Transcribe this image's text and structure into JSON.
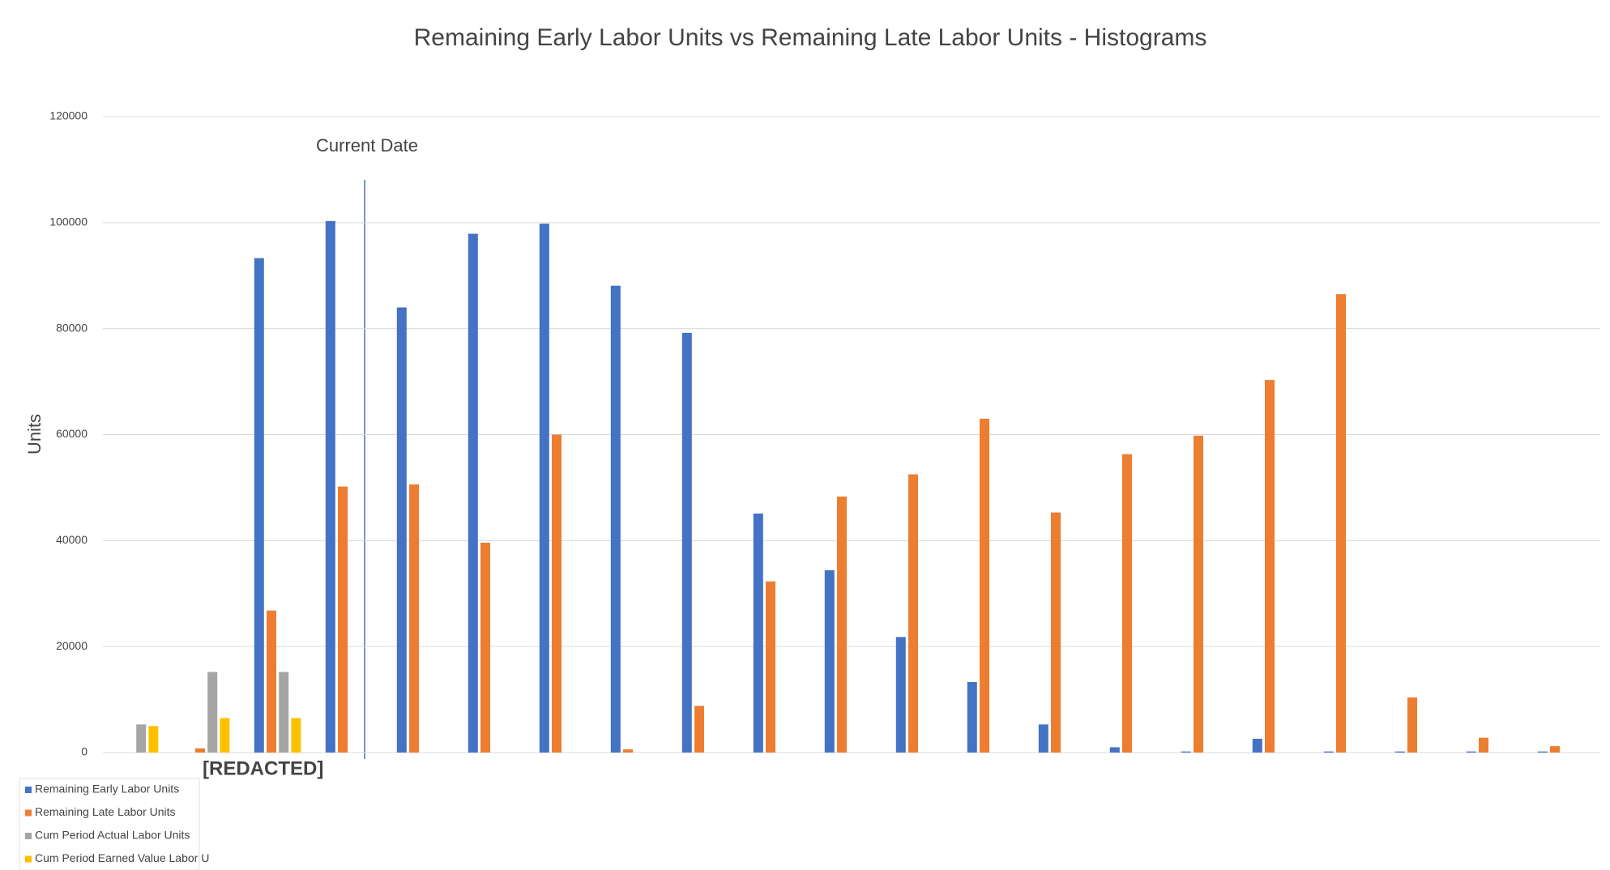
{
  "chart_data": {
    "type": "bar",
    "title": "Remaining Early Labor Units vs Remaining Late Labor Units - Histograms",
    "y_label": "Units",
    "annotations": [
      "Current Date",
      "[REDACTED]"
    ],
    "categories": [
      null,
      null,
      null,
      null,
      null,
      null,
      null,
      null,
      null,
      null,
      null,
      null,
      null,
      null,
      null,
      null,
      null,
      null,
      null,
      null,
      null
    ],
    "series": [
      {
        "name": "Remaining Early Labor Units",
        "color": "#4472c4",
        "values": [
          0,
          0,
          93300,
          100300,
          84000,
          97900,
          99800,
          88100,
          79200,
          45100,
          34400,
          21800,
          13300,
          5300,
          1000,
          200,
          2600,
          200,
          200,
          200,
          200
        ]
      },
      {
        "name": "Remaining Late Labor Units",
        "color": "#ed7d31",
        "values": [
          0,
          800,
          26800,
          50200,
          50600,
          39600,
          60000,
          600,
          8800,
          32300,
          48300,
          52500,
          63000,
          45300,
          56300,
          59800,
          70300,
          86500,
          10400,
          2800,
          1200
        ]
      },
      {
        "name": "Cum Period Actual Labor Units",
        "color": "#a5a5a5",
        "values": [
          5300,
          15200,
          15200,
          0,
          0,
          0,
          0,
          0,
          0,
          0,
          0,
          0,
          0,
          0,
          0,
          0,
          0,
          0,
          0,
          0,
          0
        ]
      },
      {
        "name": "Cum Period Earned Value Labor U",
        "color": "#ffc000",
        "values": [
          5000,
          6500,
          6500,
          0,
          0,
          0,
          0,
          0,
          0,
          0,
          0,
          0,
          0,
          0,
          0,
          0,
          0,
          0,
          0,
          0,
          0
        ]
      }
    ],
    "ylim": [
      0,
      120000
    ],
    "yticks": [
      0,
      20000,
      40000,
      60000,
      80000,
      100000,
      120000
    ],
    "grid": true,
    "legend": "bottom-left"
  }
}
